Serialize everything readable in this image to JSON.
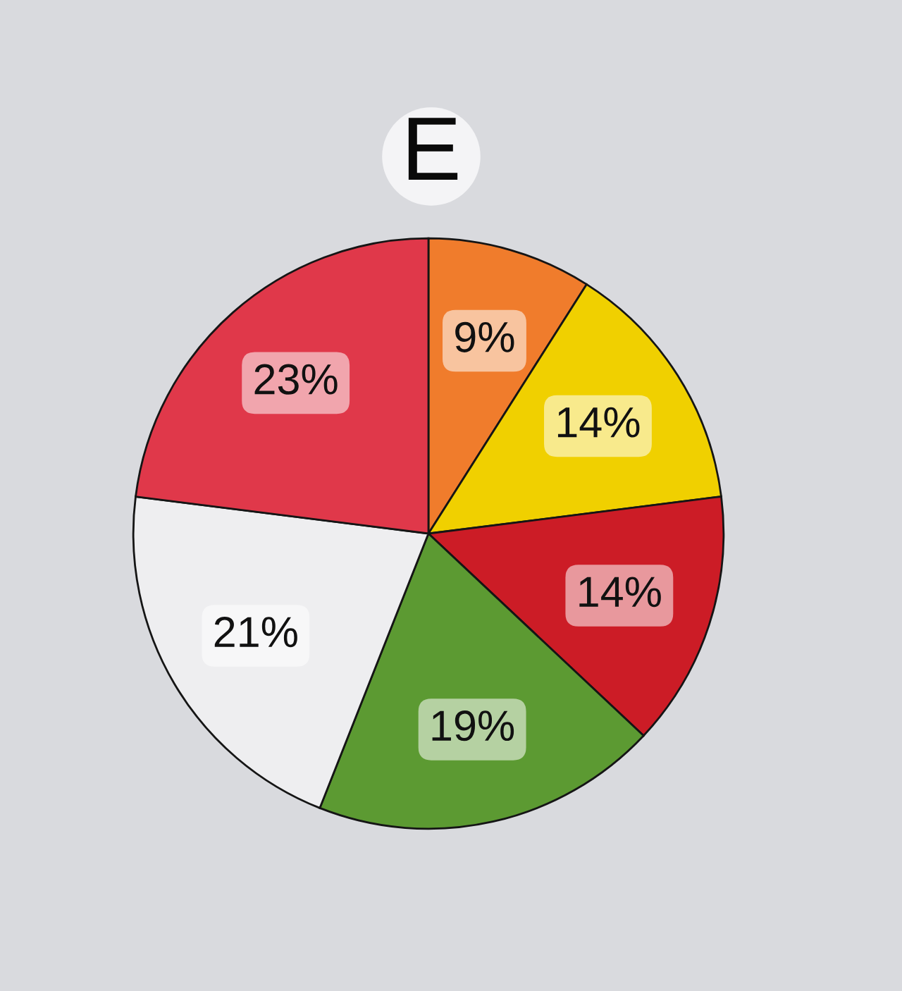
{
  "chart_data": {
    "type": "pie",
    "title": "E",
    "categories": [
      null,
      null,
      null,
      null,
      null,
      null
    ],
    "values": [
      9,
      14,
      14,
      19,
      21,
      23
    ],
    "colors": [
      "#f07c2c",
      "#f0d000",
      "#cc1c26",
      "#5c9a32",
      "#eeeef0",
      "#e0384a"
    ],
    "value_labels": [
      "9%",
      "14%",
      "14%",
      "19%",
      "21%",
      "23%"
    ]
  }
}
